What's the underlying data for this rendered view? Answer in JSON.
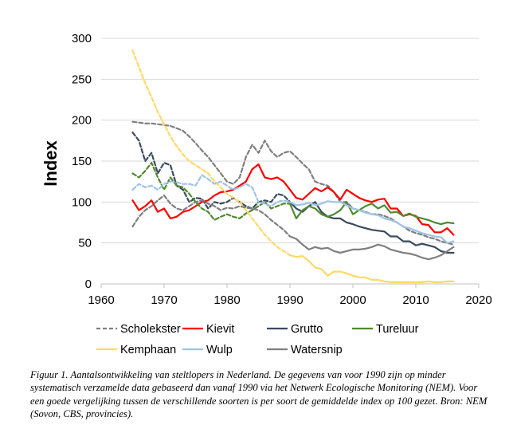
{
  "chart_data": {
    "type": "line",
    "title": "",
    "xlabel": "",
    "ylabel": "Index",
    "xlim": [
      1960,
      2020
    ],
    "ylim": [
      0,
      300
    ],
    "xticks": [
      1960,
      1970,
      1980,
      1990,
      2000,
      2010,
      2020
    ],
    "yticks": [
      0,
      50,
      100,
      150,
      200,
      250,
      300
    ],
    "grid": true,
    "legend_position": "bottom",
    "series": [
      {
        "name": "Scholekster",
        "color": "#7f7f7f",
        "dash": true,
        "x": [
          1965,
          1966,
          1967,
          1968,
          1969,
          1970,
          1971,
          1972,
          1973,
          1974,
          1975,
          1976,
          1977,
          1978,
          1979,
          1980,
          1981,
          1982,
          1983,
          1984,
          1985,
          1986,
          1987,
          1988,
          1989,
          1990,
          1991,
          1992,
          1993,
          1994,
          1995,
          1996,
          1997,
          1998,
          1999,
          2000,
          2001,
          2002,
          2003,
          2004,
          2005,
          2006,
          2007,
          2008,
          2009,
          2010,
          2011,
          2012,
          2013,
          2014,
          2015,
          2016
        ],
        "y": [
          198,
          197,
          196,
          196,
          195,
          194,
          193,
          190,
          187,
          180,
          172,
          163,
          155,
          145,
          135,
          125,
          122,
          130,
          155,
          170,
          160,
          175,
          162,
          155,
          160,
          162,
          155,
          147,
          140,
          125,
          122,
          120,
          112,
          100,
          100,
          92,
          90,
          88,
          85,
          85,
          83,
          80,
          75,
          70,
          65,
          62,
          60,
          57,
          55,
          52,
          50,
          48
        ]
      },
      {
        "name": "Kievit",
        "color": "#ff0000",
        "dash": false,
        "x": [
          1965,
          1966,
          1967,
          1968,
          1969,
          1970,
          1971,
          1972,
          1973,
          1974,
          1975,
          1976,
          1977,
          1978,
          1979,
          1980,
          1981,
          1982,
          1983,
          1984,
          1985,
          1986,
          1987,
          1988,
          1989,
          1990,
          1991,
          1992,
          1993,
          1994,
          1995,
          1996,
          1997,
          1998,
          1999,
          2000,
          2001,
          2002,
          2003,
          2004,
          2005,
          2006,
          2007,
          2008,
          2009,
          2010,
          2011,
          2012,
          2013,
          2014,
          2015,
          2016
        ],
        "y": [
          102,
          90,
          95,
          102,
          88,
          92,
          80,
          82,
          88,
          90,
          95,
          100,
          102,
          108,
          112,
          113,
          115,
          120,
          125,
          140,
          146,
          130,
          128,
          130,
          125,
          115,
          105,
          103,
          110,
          117,
          113,
          118,
          112,
          103,
          115,
          110,
          105,
          102,
          100,
          103,
          104,
          92,
          92,
          83,
          85,
          83,
          73,
          72,
          63,
          63,
          68,
          60
        ]
      },
      {
        "name": "Grutto",
        "color": "#3a4a5f",
        "dash": false,
        "x": [
          1990,
          1991,
          1992,
          1993,
          1994,
          1995,
          1996,
          1997,
          1998,
          1999,
          2000,
          2001,
          2002,
          2003,
          2004,
          2005,
          2006,
          2007,
          2008,
          2009,
          2010,
          2011,
          2012,
          2013,
          2014,
          2015,
          2016
        ],
        "y": [
          100,
          92,
          88,
          95,
          100,
          88,
          82,
          80,
          80,
          75,
          73,
          70,
          68,
          66,
          65,
          64,
          58,
          58,
          52,
          52,
          47,
          49,
          47,
          45,
          40,
          38,
          38
        ]
      },
      {
        "name": "Grutto (pre-1990)",
        "color": "#3a4a5f",
        "dash": true,
        "x": [
          1965,
          1966,
          1967,
          1968,
          1969,
          1970,
          1971,
          1972,
          1973,
          1974,
          1975,
          1976,
          1977,
          1978,
          1979,
          1980,
          1981,
          1982,
          1983,
          1984,
          1985,
          1986,
          1987,
          1988,
          1989,
          1990
        ],
        "y": [
          185,
          175,
          150,
          160,
          135,
          148,
          145,
          120,
          115,
          100,
          105,
          104,
          92,
          100,
          98,
          100,
          105,
          100,
          95,
          92,
          100,
          102,
          100,
          110,
          108,
          100
        ]
      },
      {
        "name": "Tureluur",
        "color": "#4f8a2f",
        "dash": false,
        "x": [
          1990,
          1991,
          1992,
          1993,
          1994,
          1995,
          1996,
          1997,
          1998,
          1999,
          2000,
          2001,
          2002,
          2003,
          2004,
          2005,
          2006,
          2007,
          2008,
          2009,
          2010,
          2011,
          2012,
          2013,
          2014,
          2015,
          2016
        ],
        "y": [
          98,
          80,
          90,
          95,
          92,
          85,
          82,
          85,
          90,
          100,
          85,
          90,
          95,
          98,
          92,
          96,
          87,
          88,
          83,
          86,
          82,
          80,
          78,
          75,
          73,
          75,
          74
        ]
      },
      {
        "name": "Tureluur (pre-1990)",
        "color": "#4f8a2f",
        "dash": true,
        "x": [
          1965,
          1966,
          1967,
          1968,
          1969,
          1970,
          1971,
          1972,
          1973,
          1974,
          1975,
          1976,
          1977,
          1978,
          1979,
          1980,
          1981,
          1982,
          1983,
          1984,
          1985,
          1986,
          1987,
          1988,
          1989,
          1990
        ],
        "y": [
          135,
          130,
          138,
          148,
          130,
          115,
          130,
          120,
          118,
          110,
          100,
          92,
          88,
          78,
          82,
          85,
          82,
          80,
          86,
          90,
          95,
          100,
          92,
          95,
          98,
          98
        ]
      },
      {
        "name": "Kemphaan",
        "color": "#ffd966",
        "dash": false,
        "x": [
          1990,
          1991,
          1992,
          1993,
          1994,
          1995,
          1996,
          1997,
          1998,
          1999,
          2000,
          2001,
          2002,
          2003,
          2004,
          2005,
          2006,
          2007,
          2008,
          2009,
          2010,
          2011,
          2012,
          2013,
          2014,
          2015,
          2016
        ],
        "y": [
          35,
          33,
          34,
          28,
          20,
          18,
          10,
          15,
          15,
          13,
          10,
          8,
          8,
          5,
          5,
          3,
          2,
          2,
          2,
          2,
          2,
          2,
          3,
          2,
          2,
          3,
          3
        ]
      },
      {
        "name": "Kemphaan (pre-1990)",
        "color": "#ffd966",
        "dash": true,
        "x": [
          1965,
          1966,
          1967,
          1968,
          1969,
          1970,
          1971,
          1972,
          1973,
          1974,
          1975,
          1976,
          1977,
          1978,
          1979,
          1980,
          1981,
          1982,
          1983,
          1984,
          1985,
          1986,
          1987,
          1988,
          1989,
          1990
        ],
        "y": [
          285,
          265,
          245,
          228,
          210,
          195,
          180,
          168,
          158,
          150,
          145,
          140,
          135,
          125,
          118,
          110,
          105,
          100,
          90,
          80,
          70,
          60,
          52,
          45,
          40,
          35
        ]
      },
      {
        "name": "Wulp",
        "color": "#9dc3e6",
        "dash": false,
        "x": [
          1990,
          1991,
          1992,
          1993,
          1994,
          1995,
          1996,
          1997,
          1998,
          1999,
          2000,
          2001,
          2002,
          2003,
          2004,
          2005,
          2006,
          2007,
          2008,
          2009,
          2010,
          2011,
          2012,
          2013,
          2014,
          2015,
          2016
        ],
        "y": [
          100,
          96,
          97,
          99,
          96,
          98,
          101,
          100,
          100,
          96,
          92,
          90,
          87,
          85,
          84,
          80,
          78,
          75,
          70,
          68,
          65,
          62,
          60,
          58,
          57,
          50,
          52
        ]
      },
      {
        "name": "Wulp (pre-1990)",
        "color": "#9dc3e6",
        "dash": true,
        "x": [
          1965,
          1966,
          1967,
          1968,
          1969,
          1970,
          1971,
          1972,
          1973,
          1974,
          1975,
          1976,
          1977,
          1978,
          1979,
          1980,
          1981,
          1982,
          1983,
          1984,
          1985,
          1986,
          1987,
          1988,
          1989,
          1990
        ],
        "y": [
          115,
          122,
          118,
          120,
          115,
          122,
          125,
          124,
          122,
          122,
          120,
          133,
          128,
          122,
          125,
          120,
          115,
          118,
          122,
          118,
          100,
          98,
          95,
          100,
          102,
          100
        ]
      },
      {
        "name": "Watersnip",
        "color": "#7f7f7f",
        "dash": false,
        "x": [
          1990,
          1991,
          1992,
          1993,
          1994,
          1995,
          1996,
          1997,
          1998,
          1999,
          2000,
          2001,
          2002,
          2003,
          2004,
          2005,
          2006,
          2007,
          2008,
          2009,
          2010,
          2011,
          2012,
          2013,
          2014,
          2015,
          2016
        ],
        "y": [
          58,
          55,
          48,
          42,
          45,
          43,
          44,
          40,
          38,
          40,
          42,
          42,
          43,
          45,
          48,
          46,
          42,
          40,
          38,
          37,
          35,
          32,
          30,
          32,
          35,
          40,
          45
        ]
      },
      {
        "name": "Watersnip (pre-1990)",
        "color": "#7f7f7f",
        "dash": true,
        "x": [
          1965,
          1966,
          1967,
          1968,
          1969,
          1970,
          1971,
          1972,
          1973,
          1974,
          1975,
          1976,
          1977,
          1978,
          1979,
          1980,
          1981,
          1982,
          1983,
          1984,
          1985,
          1986,
          1987,
          1988,
          1989,
          1990
        ],
        "y": [
          70,
          82,
          90,
          95,
          102,
          108,
          98,
          92,
          90,
          95,
          100,
          102,
          98,
          95,
          90,
          93,
          92,
          95,
          93,
          92,
          90,
          85,
          78,
          72,
          66,
          58
        ]
      }
    ],
    "legend": [
      {
        "label": "Scholekster",
        "color": "#7f7f7f",
        "dash": true
      },
      {
        "label": "Kievit",
        "color": "#ff0000",
        "dash": false
      },
      {
        "label": "Grutto",
        "color": "#3a4a5f",
        "dash": false
      },
      {
        "label": "Tureluur",
        "color": "#4f8a2f",
        "dash": false
      },
      {
        "label": "Kemphaan",
        "color": "#ffd966",
        "dash": false
      },
      {
        "label": "Wulp",
        "color": "#9dc3e6",
        "dash": false
      },
      {
        "label": "Watersnip",
        "color": "#7f7f7f",
        "dash": false
      }
    ]
  },
  "caption": "Figuur 1. Aantalsontwikkeling van steltlopers in Nederland. De gegevens van voor 1990 zijn op minder systematisch verzamelde data gebaseerd dan vanaf 1990 via het Netwerk Ecologische Monitoring (NEM). Voor een goede vergelijking tussen de verschillende soorten is per soort de gemiddelde index op 100 gezet. Bron: NEM (Sovon, CBS, provincies)."
}
